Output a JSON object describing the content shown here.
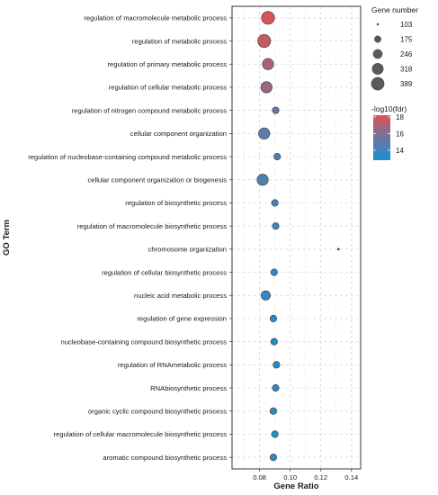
{
  "chart_data": {
    "type": "scatter",
    "subtype": "dot-plot",
    "xlabel": "Gene Ratio",
    "ylabel": "GO Term",
    "xlim": [
      0.062,
      0.146
    ],
    "x_ticks": [
      0.08,
      0.1,
      0.12,
      0.14
    ],
    "x_tick_labels": [
      "0.08",
      "0.10",
      "0.12",
      "0.14"
    ],
    "grid": true,
    "grid_style": "dashed",
    "legend_position": "right",
    "points": [
      {
        "term": "regulation of macromolecule metabolic process",
        "gene_ratio": 0.0855,
        "gene_number": 389,
        "neg_log10_fdr": 18.0
      },
      {
        "term": "regulation of metabolic process",
        "gene_ratio": 0.083,
        "gene_number": 389,
        "neg_log10_fdr": 17.6
      },
      {
        "term": "regulation of primary metabolic process",
        "gene_ratio": 0.0855,
        "gene_number": 318,
        "neg_log10_fdr": 16.9
      },
      {
        "term": "regulation of cellular metabolic process",
        "gene_ratio": 0.0845,
        "gene_number": 318,
        "neg_log10_fdr": 16.5
      },
      {
        "term": "regulation of nitrogen compound metabolic process",
        "gene_ratio": 0.0905,
        "gene_number": 175,
        "neg_log10_fdr": 15.2
      },
      {
        "term": "cellular component organization",
        "gene_ratio": 0.083,
        "gene_number": 318,
        "neg_log10_fdr": 14.9
      },
      {
        "term": "regulation of nucleobase-containing compound metabolic process",
        "gene_ratio": 0.0915,
        "gene_number": 175,
        "neg_log10_fdr": 14.7
      },
      {
        "term": "cellular component organization or biogenesis",
        "gene_ratio": 0.082,
        "gene_number": 318,
        "neg_log10_fdr": 14.6
      },
      {
        "term": "regulation of biosynthetic process",
        "gene_ratio": 0.09,
        "gene_number": 175,
        "neg_log10_fdr": 14.1
      },
      {
        "term": "regulation of macromolecule biosynthetic process",
        "gene_ratio": 0.0905,
        "gene_number": 175,
        "neg_log10_fdr": 14.0
      },
      {
        "term": "chromosome organization",
        "gene_ratio": 0.1315,
        "gene_number": 103,
        "neg_log10_fdr": 13.8
      },
      {
        "term": "regulation of cellular biosynthetic process",
        "gene_ratio": 0.0895,
        "gene_number": 175,
        "neg_log10_fdr": 13.8
      },
      {
        "term": "nucleic acid metabolic process",
        "gene_ratio": 0.084,
        "gene_number": 246,
        "neg_log10_fdr": 13.6
      },
      {
        "term": "regulation of gene expression",
        "gene_ratio": 0.089,
        "gene_number": 175,
        "neg_log10_fdr": 13.5
      },
      {
        "term": "nucleobase-containing compound biosynthetic process",
        "gene_ratio": 0.0895,
        "gene_number": 175,
        "neg_log10_fdr": 13.4
      },
      {
        "term": "regulation of RNAmetabolic process",
        "gene_ratio": 0.091,
        "gene_number": 175,
        "neg_log10_fdr": 13.4
      },
      {
        "term": "RNAbiosynthetic process",
        "gene_ratio": 0.0905,
        "gene_number": 175,
        "neg_log10_fdr": 13.3
      },
      {
        "term": "organic cyclic compound biosynthetic process",
        "gene_ratio": 0.089,
        "gene_number": 175,
        "neg_log10_fdr": 13.3
      },
      {
        "term": "regulation of cellular macromolecule biosynthetic process",
        "gene_ratio": 0.09,
        "gene_number": 175,
        "neg_log10_fdr": 13.2
      },
      {
        "term": "aromatic compound biosynthetic process",
        "gene_ratio": 0.089,
        "gene_number": 175,
        "neg_log10_fdr": 13.2
      }
    ],
    "size_legend": {
      "title": "Gene number",
      "values": [
        103,
        175,
        246,
        318,
        389
      ],
      "labels": [
        "103",
        "175",
        "246",
        "318",
        "389"
      ]
    },
    "color_legend": {
      "title": "-log10(fdr)",
      "range": [
        12.8,
        18.2
      ],
      "ticks": [
        14,
        16,
        18
      ],
      "tick_labels": [
        "14",
        "16",
        "18"
      ],
      "low_color": "#1a8fd0",
      "mid_color": "#6d75a0",
      "high_color": "#e05252"
    }
  }
}
